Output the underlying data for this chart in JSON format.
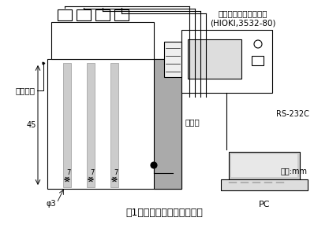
{
  "title": "図1　電気的特性の計測装置",
  "label_glass": "ガラス板",
  "label_alumi": "アルミ",
  "label_45": "45",
  "label_7a": "7",
  "label_7b": "7",
  "label_7c": "7",
  "label_phi3": "φ3",
  "label_pc": "PC",
  "label_rs232c": "RS-232C",
  "label_impedance": "インピーダンスメータ",
  "label_hioki": "(HIOKI,3532-80)",
  "label_unit": "単位:mm",
  "bg_color": "#ffffff",
  "gray_light": "#cccccc",
  "gray_mid": "#aaaaaa",
  "gray_dark": "#888888",
  "black": "#000000"
}
